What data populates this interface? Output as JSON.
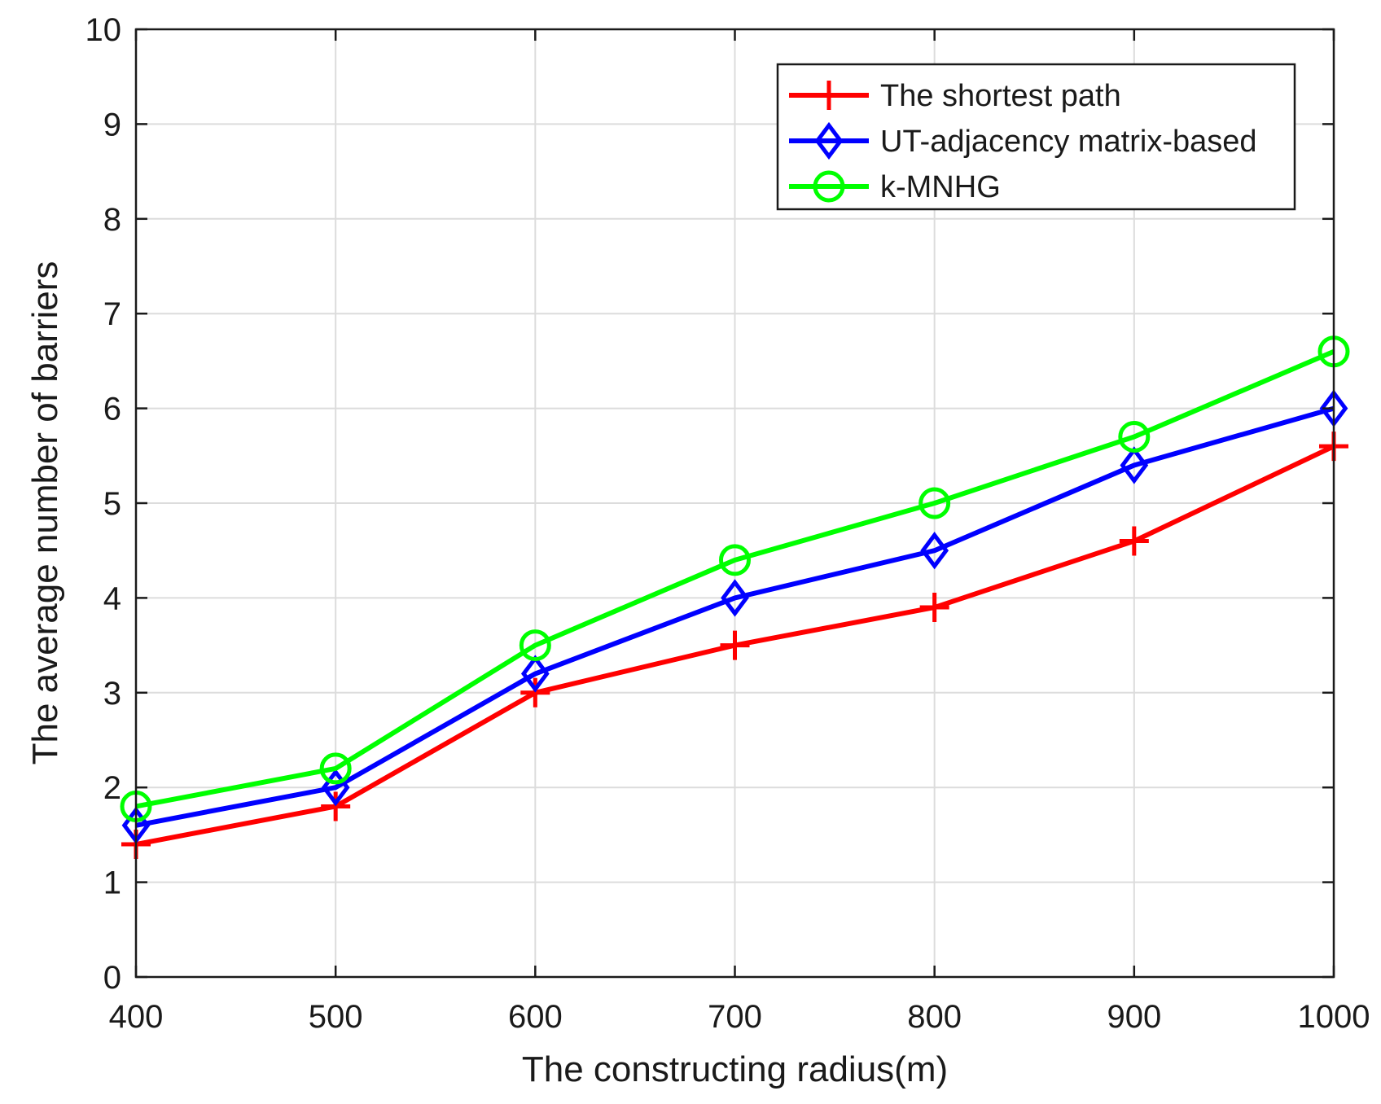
{
  "chart_data": {
    "type": "line",
    "title": "",
    "xlabel": "The constructing radius(m)",
    "ylabel": "The average number of barriers",
    "x": [
      400,
      500,
      600,
      700,
      800,
      900,
      1000
    ],
    "xlim": [
      400,
      1000
    ],
    "ylim": [
      0,
      10
    ],
    "xticks": [
      "400",
      "500",
      "600",
      "700",
      "800",
      "900",
      "1000"
    ],
    "yticks": [
      "0",
      "1",
      "2",
      "3",
      "4",
      "5",
      "6",
      "7",
      "8",
      "9",
      "10"
    ],
    "grid": true,
    "legend_position": "top-right",
    "series": [
      {
        "name": "The shortest path",
        "marker": "plus",
        "color": "#ff0000",
        "values": [
          1.4,
          1.8,
          3.0,
          3.5,
          3.9,
          4.6,
          5.6
        ]
      },
      {
        "name": "UT-adjacency matrix-based",
        "marker": "diamond",
        "color": "#0000ff",
        "values": [
          1.6,
          2.0,
          3.2,
          4.0,
          4.5,
          5.4,
          6.0
        ]
      },
      {
        "name": "k-MNHG",
        "marker": "circle",
        "color": "#00ff00",
        "values": [
          1.8,
          2.2,
          3.5,
          4.4,
          5.0,
          5.7,
          6.6
        ]
      }
    ]
  }
}
